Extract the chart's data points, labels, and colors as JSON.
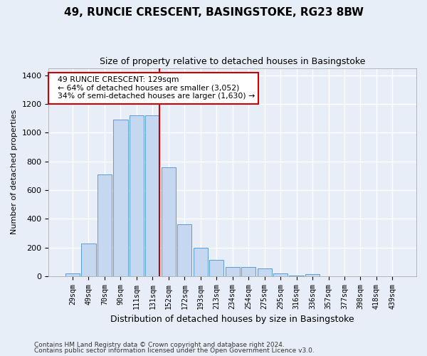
{
  "title": "49, RUNCIE CRESCENT, BASINGSTOKE, RG23 8BW",
  "subtitle": "Size of property relative to detached houses in Basingstoke",
  "xlabel": "Distribution of detached houses by size in Basingstoke",
  "ylabel": "Number of detached properties",
  "footnote1": "Contains HM Land Registry data © Crown copyright and database right 2024.",
  "footnote2": "Contains public sector information licensed under the Open Government Licence v3.0.",
  "categories": [
    "29sqm",
    "49sqm",
    "70sqm",
    "90sqm",
    "111sqm",
    "131sqm",
    "152sqm",
    "172sqm",
    "193sqm",
    "213sqm",
    "234sqm",
    "254sqm",
    "275sqm",
    "295sqm",
    "316sqm",
    "336sqm",
    "357sqm",
    "377sqm",
    "398sqm",
    "418sqm",
    "439sqm"
  ],
  "values": [
    20,
    230,
    710,
    1090,
    1120,
    1120,
    760,
    360,
    200,
    115,
    65,
    65,
    55,
    20,
    5,
    15,
    0,
    0,
    0,
    0,
    0
  ],
  "bar_color": "#c5d8f0",
  "bar_edge_color": "#5b9bd5",
  "vline_x": 5.45,
  "property_sqm": "129sqm",
  "pct_smaller": 64,
  "n_smaller": 3052,
  "pct_larger_semi": 34,
  "n_larger_semi": 1630,
  "annotation_box_color": "#ffffff",
  "annotation_box_edge": "#cc0000",
  "vline_color": "#cc0000",
  "bg_color": "#e8eef8",
  "plot_bg_color": "#e8eef8",
  "grid_color": "#ffffff",
  "ylim": [
    0,
    1450
  ],
  "yticks": [
    0,
    200,
    400,
    600,
    800,
    1000,
    1200,
    1400
  ]
}
